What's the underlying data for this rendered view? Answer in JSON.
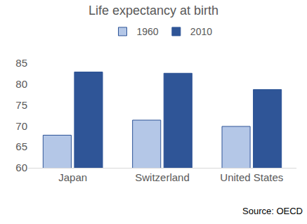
{
  "chart_data": {
    "type": "bar",
    "title": "Life expectancy at birth",
    "categories": [
      "Japan",
      "Switzerland",
      "United States"
    ],
    "series": [
      {
        "name": "1960",
        "color": "#b4c7e7",
        "values": [
          67.8,
          71.4,
          69.9
        ]
      },
      {
        "name": "2010",
        "color": "#2f5597",
        "values": [
          82.9,
          82.6,
          78.7
        ]
      }
    ],
    "ylim": [
      60,
      85
    ],
    "yticks": [
      60,
      65,
      70,
      75,
      80,
      85
    ],
    "grid": false,
    "legend": "top",
    "annotations": [
      "Source: OECD"
    ]
  }
}
